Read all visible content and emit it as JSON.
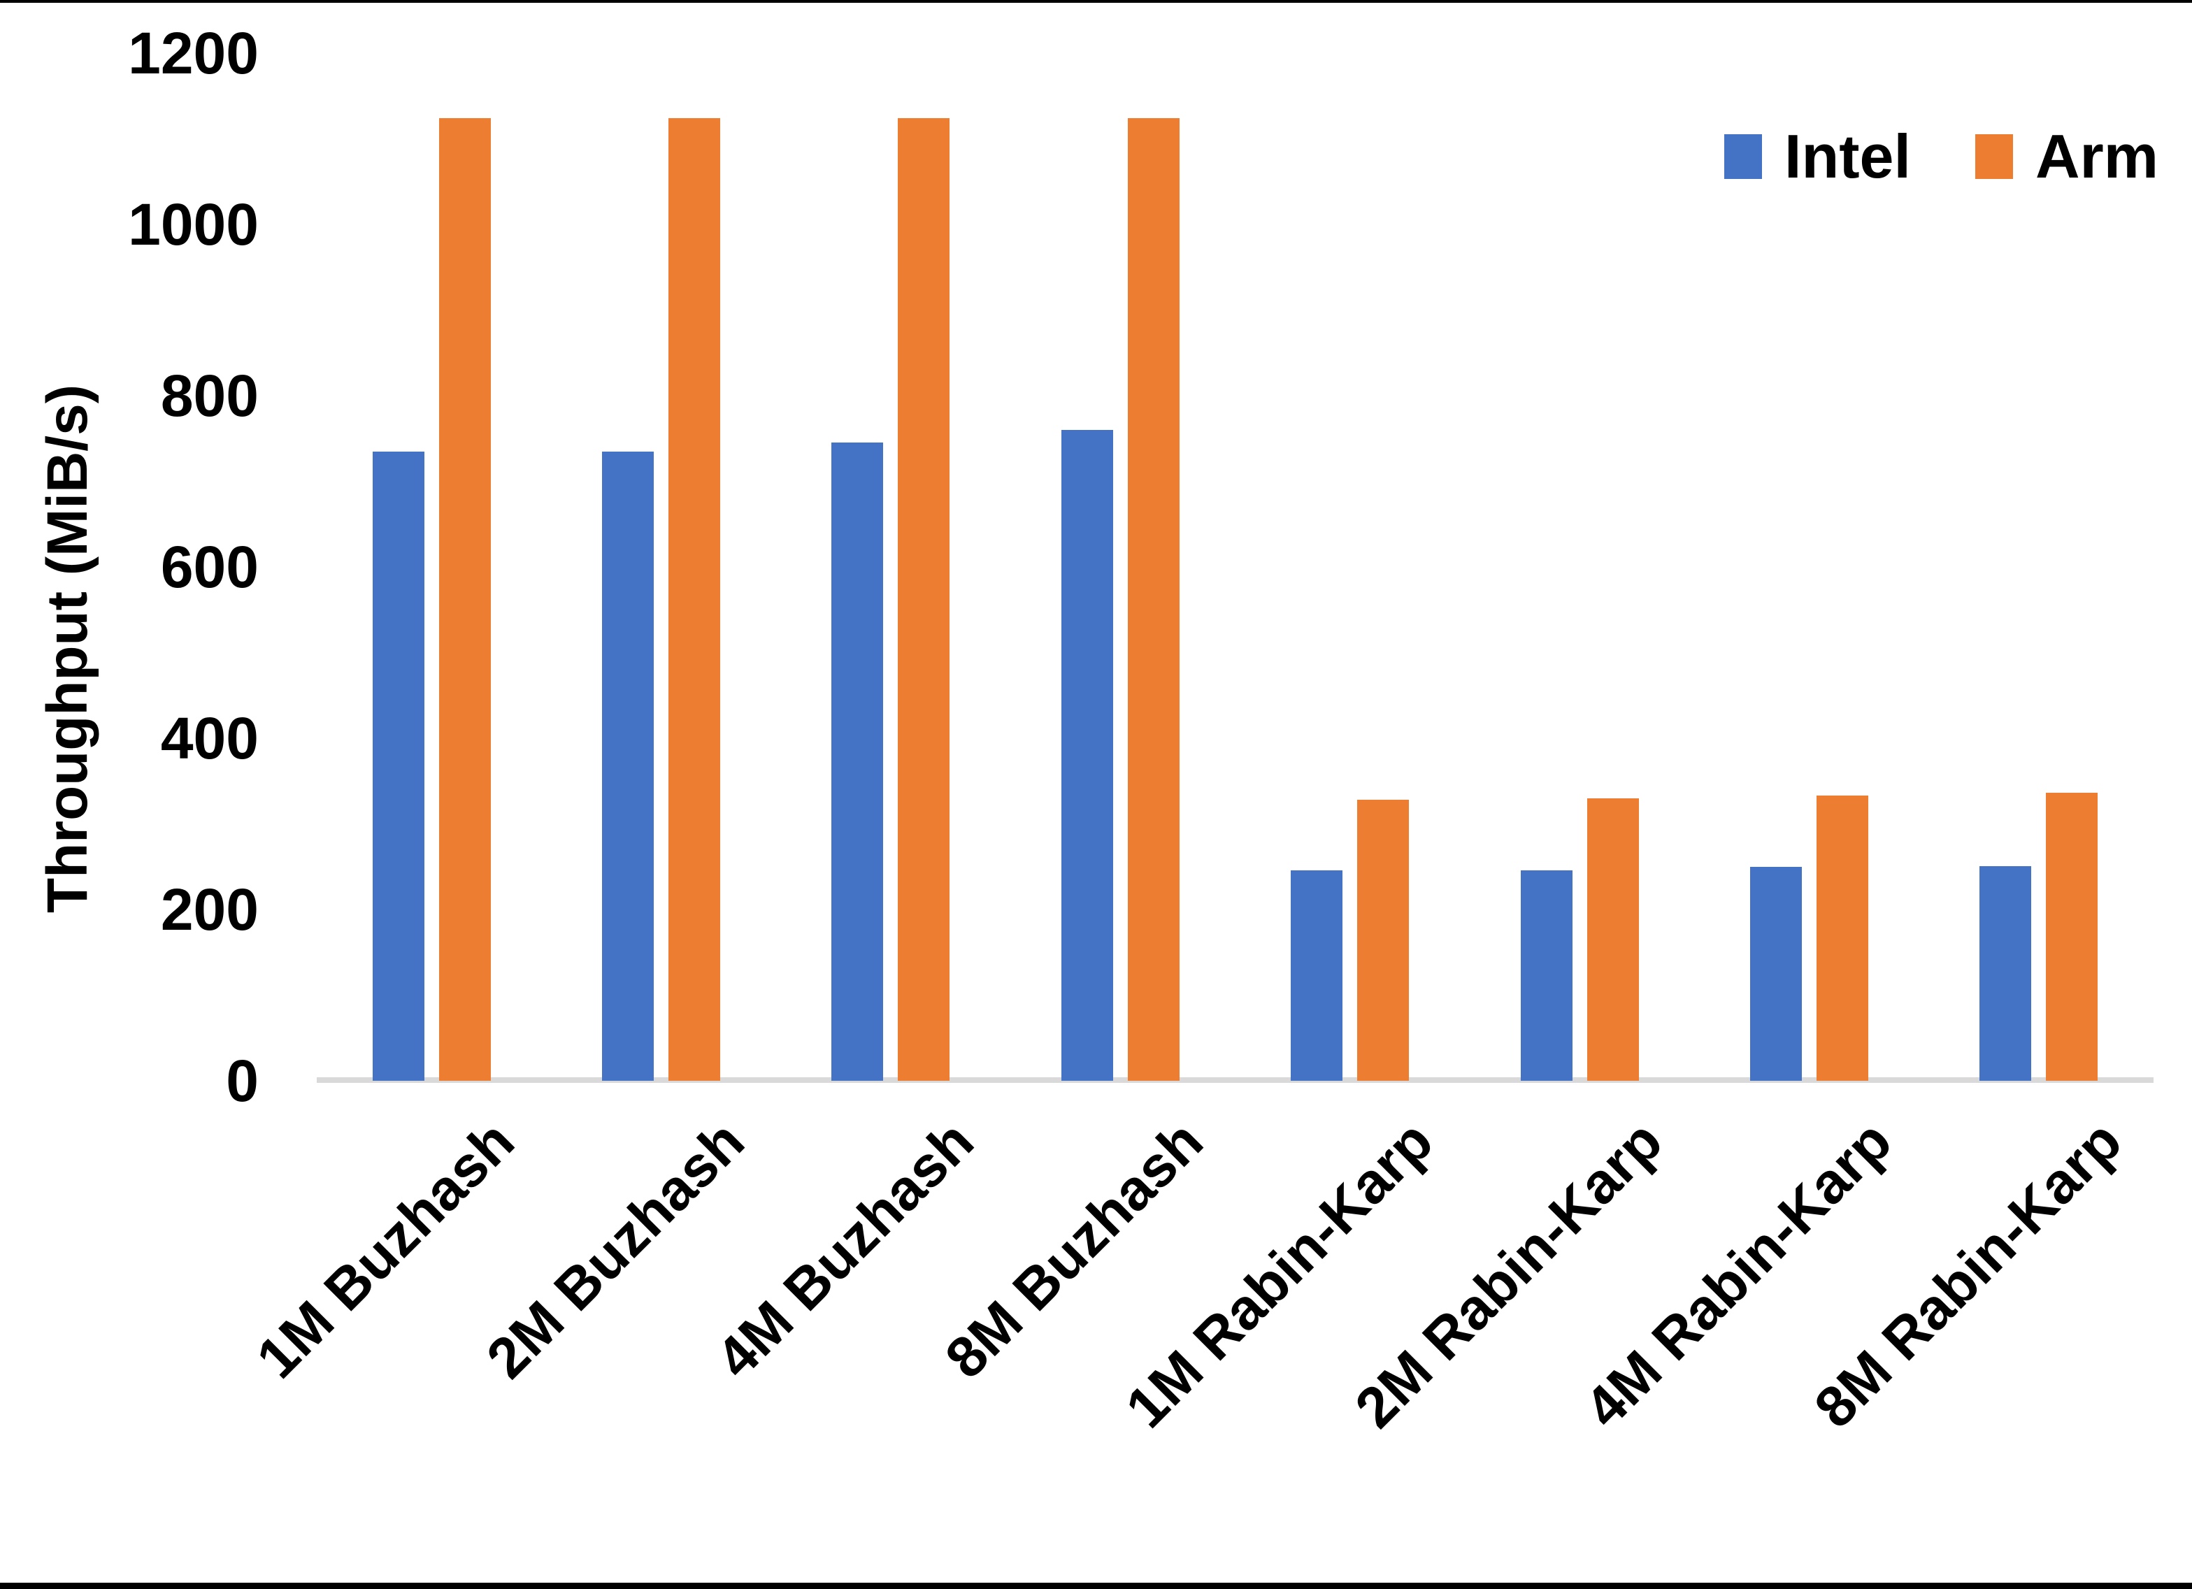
{
  "chart_data": {
    "type": "bar",
    "title": "",
    "xlabel": "",
    "ylabel": "Throughput (MiB/s)",
    "categories": [
      "1M Buzhash",
      "2M Buzhash",
      "4M Buzhash",
      "8M Buzhash",
      "1M Rabin-Karp",
      "2M Rabin-Karp",
      "4M Rabin-Karp",
      "8M Rabin-Karp"
    ],
    "series": [
      {
        "name": "Intel",
        "color": "#4472C4",
        "values": [
          735,
          735,
          745,
          760,
          246,
          246,
          250,
          251
        ]
      },
      {
        "name": "Arm",
        "color": "#ED7D31",
        "values": [
          1124,
          1124,
          1124,
          1124,
          328,
          330,
          333,
          336
        ]
      }
    ],
    "ylim": [
      0,
      1200
    ],
    "y_tick_step": 200,
    "grid": false,
    "legend_position": "top-right",
    "axis_line_color": "#d9d9d9",
    "background_color": "#ffffff"
  }
}
